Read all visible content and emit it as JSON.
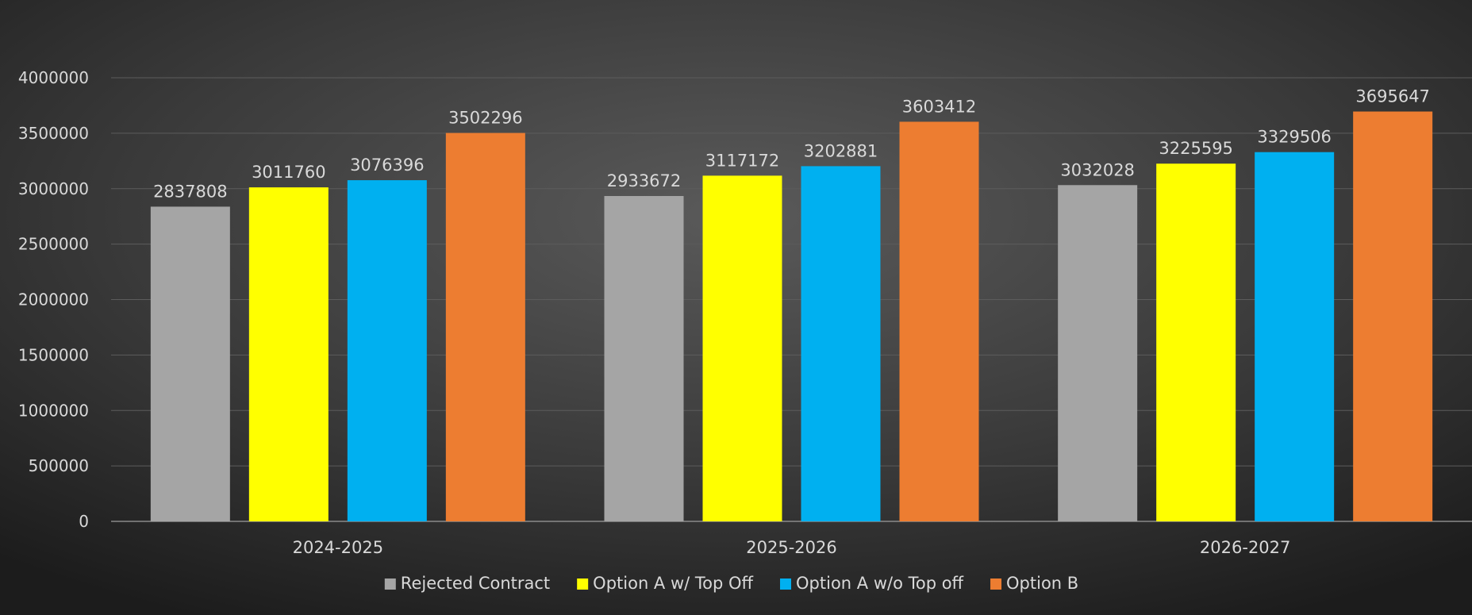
{
  "chart_data": {
    "type": "bar",
    "title": "",
    "xlabel": "",
    "ylabel": "",
    "ylim": [
      0,
      4000000
    ],
    "yticks": [
      0,
      500000,
      1000000,
      1500000,
      2000000,
      2500000,
      3000000,
      3500000,
      4000000
    ],
    "ytick_labels": [
      "0",
      "500000",
      "1000000",
      "1500000",
      "2000000",
      "2500000",
      "3000000",
      "3500000",
      "4000000"
    ],
    "grid": true,
    "legend_position": "bottom",
    "categories": [
      "2024-2025",
      "2025-2026",
      "2026-2027"
    ],
    "series": [
      {
        "name": "Rejected Contract",
        "color": "#a5a5a5",
        "values": [
          2837808,
          2933672,
          3032028
        ],
        "labels": [
          "2837808",
          "2933672",
          "3032028"
        ]
      },
      {
        "name": "Option A w/ Top Off",
        "color": "#ffff00",
        "values": [
          3011760,
          3117172,
          3225595
        ],
        "labels": [
          "3011760",
          "3117172",
          "3225595"
        ]
      },
      {
        "name": "Option A w/o Top off",
        "color": "#00b0f0",
        "values": [
          3076396,
          3202881,
          3329506
        ],
        "labels": [
          "3076396",
          "3202881",
          "3329506"
        ]
      },
      {
        "name": "Option B",
        "color": "#ed7d31",
        "values": [
          3502296,
          3603412,
          3695647
        ],
        "labels": [
          "3502296",
          "3603412",
          "3695647"
        ]
      }
    ]
  }
}
